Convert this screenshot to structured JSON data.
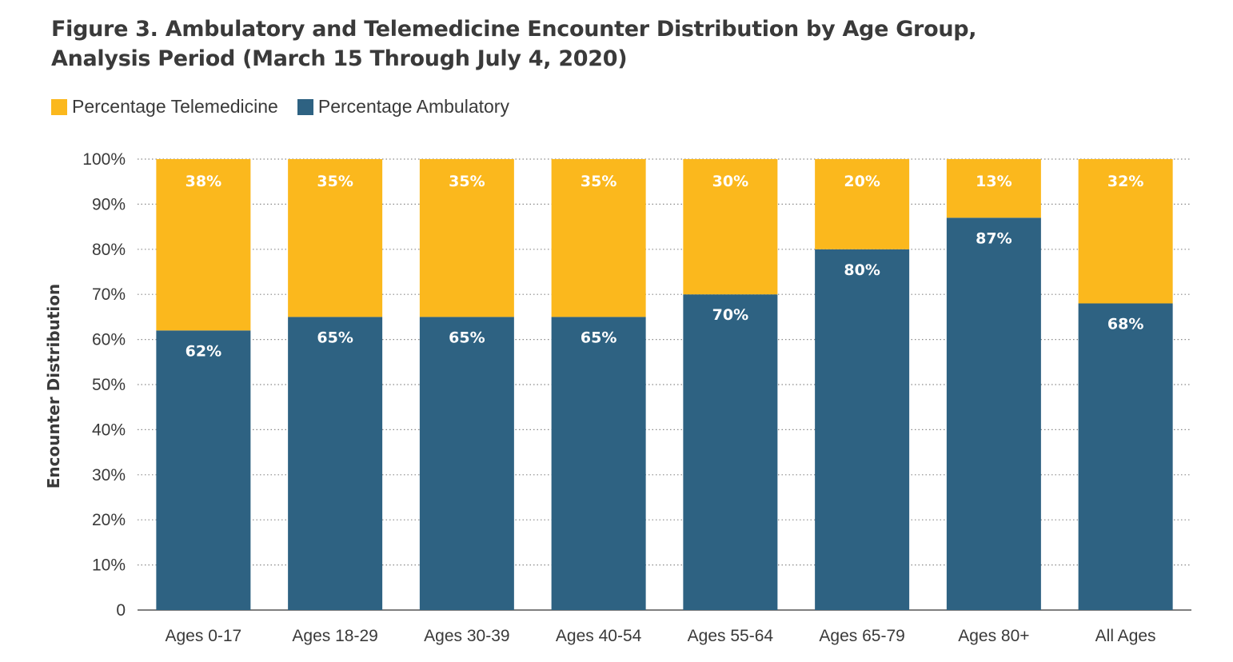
{
  "title": {
    "line1": "Figure 3. Ambulatory and Telemedicine Encounter Distribution by Age Group,",
    "line2": "Analysis Period (March 15 Through July 4, 2020)"
  },
  "legend": {
    "telemedicine_label": "Percentage Telemedicine",
    "ambulatory_label": "Percentage Ambulatory"
  },
  "colors": {
    "telemedicine": "#FBB81D",
    "ambulatory": "#2E6282",
    "grid": "#8a8a8a",
    "axis": "#555555"
  },
  "chart_data": {
    "type": "bar",
    "stacked": true,
    "title": "Figure 3. Ambulatory and Telemedicine Encounter Distribution by Age Group, Analysis Period (March 15 Through July 4, 2020)",
    "xlabel": "",
    "ylabel": "Encounter Distribution",
    "ylim": [
      0,
      100
    ],
    "yticks": [
      0,
      10,
      20,
      30,
      40,
      50,
      60,
      70,
      80,
      90,
      100
    ],
    "ytick_labels": [
      "0",
      "10%",
      "20%",
      "30%",
      "40%",
      "50%",
      "60%",
      "70%",
      "80%",
      "90%",
      "100%"
    ],
    "grid": "horizontal dotted",
    "legend_position": "top-left",
    "categories": [
      "Ages 0-17",
      "Ages 18-29",
      "Ages 30-39",
      "Ages 40-54",
      "Ages 55-64",
      "Ages 65-79",
      "Ages 80+",
      "All Ages"
    ],
    "series": [
      {
        "name": "Percentage Ambulatory",
        "values": [
          62,
          65,
          65,
          65,
          70,
          80,
          87,
          68
        ],
        "labels": [
          "62%",
          "65%",
          "65%",
          "65%",
          "70%",
          "80%",
          "87%",
          "68%"
        ]
      },
      {
        "name": "Percentage Telemedicine",
        "values": [
          38,
          35,
          35,
          35,
          30,
          20,
          13,
          32
        ],
        "labels": [
          "38%",
          "35%",
          "35%",
          "35%",
          "30%",
          "20%",
          "13%",
          "32%"
        ]
      }
    ]
  }
}
